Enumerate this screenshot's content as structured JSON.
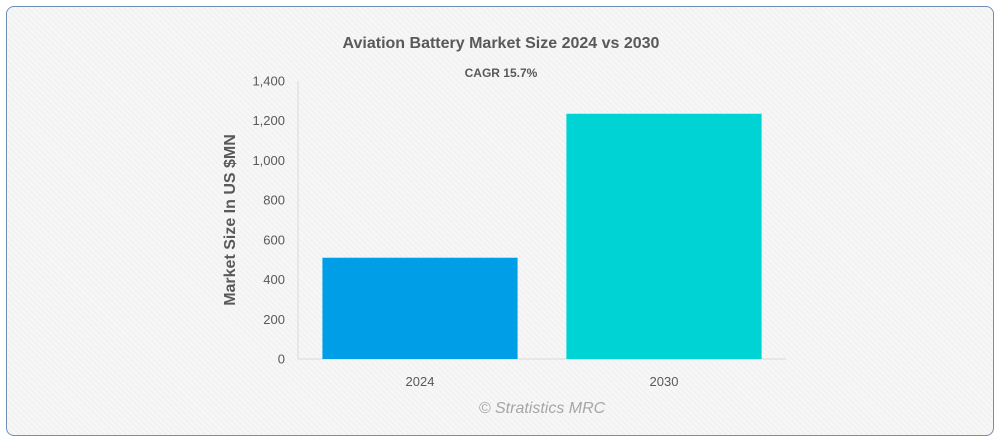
{
  "chart_data": {
    "type": "bar",
    "title": "Aviation Battery Market Size 2024 vs 2030",
    "subtitle": "CAGR 15.7%",
    "ylabel": "Market Size In US $MN",
    "xlabel": "",
    "categories": [
      "2024",
      "2030"
    ],
    "values": [
      510,
      1235
    ],
    "ylim": [
      0,
      1400
    ],
    "yticks": [
      0,
      200,
      400,
      600,
      800,
      1000,
      1200,
      1400
    ],
    "ytick_labels": [
      "0",
      "200",
      "400",
      "600",
      "800",
      "1,000",
      "1,200",
      "1,400"
    ],
    "colors": [
      "#019ee8",
      "#00d3d3"
    ],
    "grid": false,
    "legend": "none"
  },
  "watermark": "© Stratistics MRC"
}
